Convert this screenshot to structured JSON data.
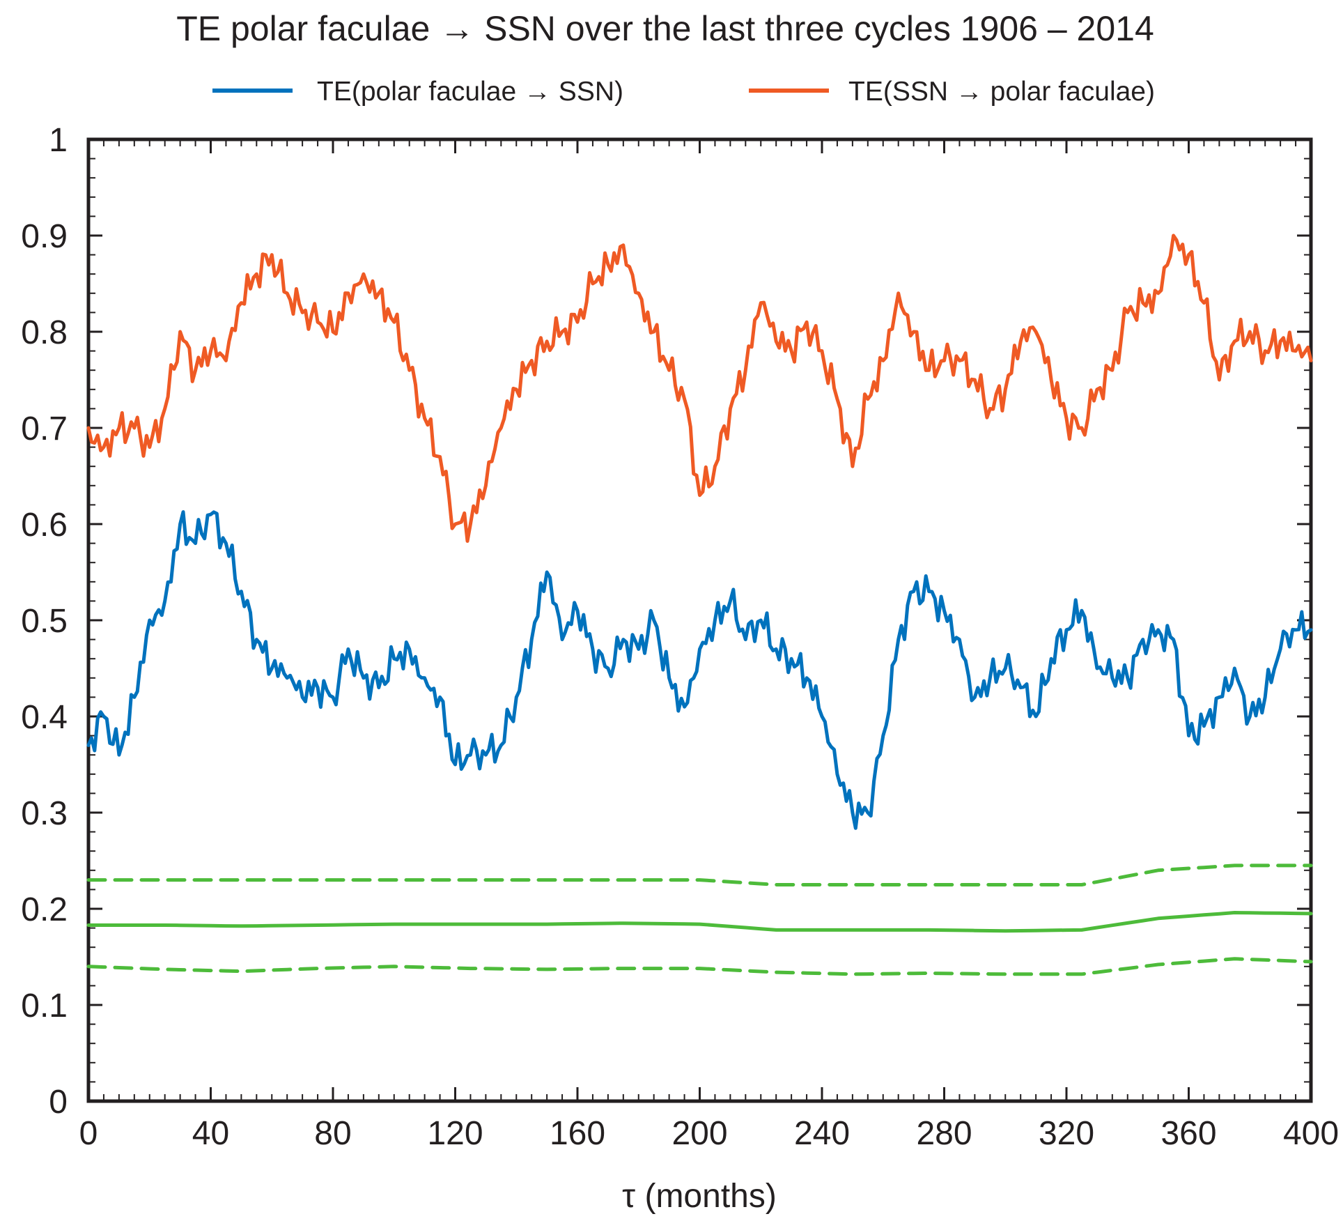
{
  "chart_data": {
    "type": "line",
    "title": "TE polar faculae → SSN over the last three cycles  1906 – 2014",
    "xlabel": "τ (months)",
    "ylabel": "",
    "xlim": [
      0,
      400
    ],
    "ylim": [
      0,
      1
    ],
    "xticks": [
      0,
      40,
      80,
      120,
      160,
      200,
      240,
      280,
      320,
      360,
      400
    ],
    "yticks": [
      0,
      0.1,
      0.2,
      0.3,
      0.4,
      0.5,
      0.6,
      0.7,
      0.8,
      0.9,
      1
    ],
    "ytick_labels": [
      "0",
      "0.1",
      "0.2",
      "0.3",
      "0.4",
      "0.5",
      "0.6",
      "0.7",
      "0.8",
      "0.9",
      "1"
    ],
    "grid": false,
    "legend_position": "top",
    "series": [
      {
        "name": "TE(polar faculae → SSN)",
        "color": "#0072bd",
        "style": "solid",
        "x": [
          0,
          5,
          10,
          15,
          20,
          25,
          30,
          35,
          40,
          45,
          50,
          55,
          60,
          65,
          70,
          75,
          80,
          85,
          90,
          95,
          100,
          105,
          110,
          115,
          120,
          125,
          130,
          135,
          140,
          145,
          150,
          155,
          160,
          165,
          170,
          175,
          180,
          185,
          190,
          195,
          200,
          205,
          210,
          215,
          220,
          225,
          230,
          235,
          240,
          245,
          250,
          255,
          260,
          265,
          270,
          275,
          280,
          285,
          290,
          295,
          300,
          305,
          310,
          315,
          320,
          325,
          330,
          335,
          340,
          345,
          350,
          355,
          360,
          365,
          370,
          375,
          380,
          385,
          390,
          395,
          400
        ],
        "values": [
          0.37,
          0.4,
          0.36,
          0.42,
          0.5,
          0.52,
          0.6,
          0.58,
          0.61,
          0.58,
          0.53,
          0.48,
          0.45,
          0.44,
          0.42,
          0.43,
          0.42,
          0.47,
          0.44,
          0.43,
          0.46,
          0.47,
          0.44,
          0.42,
          0.35,
          0.36,
          0.36,
          0.37,
          0.42,
          0.48,
          0.55,
          0.48,
          0.51,
          0.47,
          0.45,
          0.48,
          0.47,
          0.5,
          0.44,
          0.41,
          0.47,
          0.5,
          0.52,
          0.48,
          0.5,
          0.47,
          0.46,
          0.44,
          0.4,
          0.34,
          0.3,
          0.3,
          0.38,
          0.48,
          0.53,
          0.53,
          0.51,
          0.48,
          0.42,
          0.44,
          0.45,
          0.43,
          0.4,
          0.46,
          0.49,
          0.51,
          0.45,
          0.44,
          0.44,
          0.48,
          0.49,
          0.48,
          0.38,
          0.39,
          0.42,
          0.45,
          0.4,
          0.42,
          0.47,
          0.49,
          0.49
        ]
      },
      {
        "name": "TE(SSN → polar faculae)",
        "color": "#ef5a24",
        "style": "solid",
        "x": [
          0,
          5,
          10,
          15,
          20,
          25,
          30,
          35,
          40,
          45,
          50,
          55,
          60,
          65,
          70,
          75,
          80,
          85,
          90,
          95,
          100,
          105,
          110,
          115,
          120,
          125,
          130,
          135,
          140,
          145,
          150,
          155,
          160,
          165,
          170,
          175,
          180,
          185,
          190,
          195,
          200,
          205,
          210,
          215,
          220,
          225,
          230,
          235,
          240,
          245,
          250,
          255,
          260,
          265,
          270,
          275,
          280,
          285,
          290,
          295,
          300,
          305,
          310,
          315,
          320,
          325,
          330,
          335,
          340,
          345,
          350,
          355,
          360,
          365,
          370,
          375,
          380,
          385,
          390,
          395,
          400
        ],
        "values": [
          0.7,
          0.68,
          0.7,
          0.7,
          0.68,
          0.72,
          0.8,
          0.76,
          0.78,
          0.77,
          0.83,
          0.86,
          0.88,
          0.84,
          0.82,
          0.81,
          0.8,
          0.84,
          0.86,
          0.84,
          0.81,
          0.76,
          0.71,
          0.67,
          0.6,
          0.6,
          0.64,
          0.7,
          0.74,
          0.77,
          0.79,
          0.8,
          0.81,
          0.85,
          0.87,
          0.89,
          0.84,
          0.8,
          0.76,
          0.73,
          0.63,
          0.66,
          0.72,
          0.76,
          0.83,
          0.79,
          0.78,
          0.81,
          0.78,
          0.73,
          0.66,
          0.73,
          0.77,
          0.84,
          0.8,
          0.76,
          0.77,
          0.77,
          0.75,
          0.72,
          0.74,
          0.79,
          0.8,
          0.75,
          0.71,
          0.7,
          0.74,
          0.76,
          0.82,
          0.83,
          0.84,
          0.9,
          0.88,
          0.83,
          0.75,
          0.79,
          0.8,
          0.78,
          0.79,
          0.78,
          0.77
        ]
      },
      {
        "name": "",
        "color": "#4dbb3a",
        "style": "dashed",
        "x": [
          0,
          25,
          50,
          75,
          100,
          125,
          150,
          175,
          200,
          225,
          250,
          275,
          300,
          325,
          350,
          375,
          400
        ],
        "values": [
          0.23,
          0.23,
          0.23,
          0.23,
          0.23,
          0.23,
          0.23,
          0.23,
          0.23,
          0.225,
          0.225,
          0.225,
          0.225,
          0.225,
          0.24,
          0.245,
          0.245
        ]
      },
      {
        "name": "",
        "color": "#4dbb3a",
        "style": "solid",
        "x": [
          0,
          25,
          50,
          75,
          100,
          125,
          150,
          175,
          200,
          225,
          250,
          275,
          300,
          325,
          350,
          375,
          400
        ],
        "values": [
          0.183,
          0.183,
          0.182,
          0.183,
          0.184,
          0.184,
          0.184,
          0.185,
          0.184,
          0.178,
          0.178,
          0.178,
          0.177,
          0.178,
          0.19,
          0.196,
          0.195
        ]
      },
      {
        "name": "",
        "color": "#4dbb3a",
        "style": "dashed",
        "x": [
          0,
          25,
          50,
          75,
          100,
          125,
          150,
          175,
          200,
          225,
          250,
          275,
          300,
          325,
          350,
          375,
          400
        ],
        "values": [
          0.14,
          0.137,
          0.135,
          0.138,
          0.14,
          0.138,
          0.137,
          0.138,
          0.138,
          0.134,
          0.132,
          0.133,
          0.132,
          0.132,
          0.142,
          0.148,
          0.145
        ]
      }
    ]
  }
}
